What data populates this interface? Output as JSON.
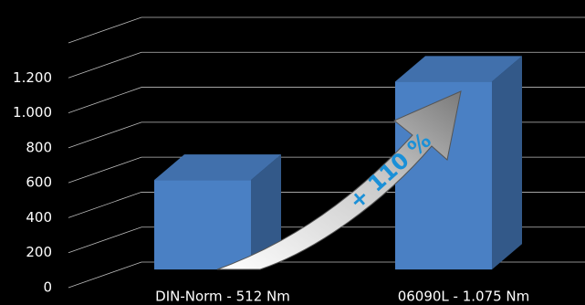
{
  "chart_data": {
    "type": "bar3d",
    "categories": [
      "DIN-Norm - 512 Nm",
      "06090L - 1.075 Nm"
    ],
    "values": [
      512,
      1075
    ],
    "color": "#4a80c4",
    "ylim": [
      0,
      1400
    ],
    "yticks": [
      0,
      200,
      400,
      600,
      800,
      {
        "value": 1000,
        "label": "1.000"
      },
      {
        "value": 1200,
        "label": "1.200"
      }
    ],
    "grid": true,
    "annotation": "+ 110 %"
  }
}
